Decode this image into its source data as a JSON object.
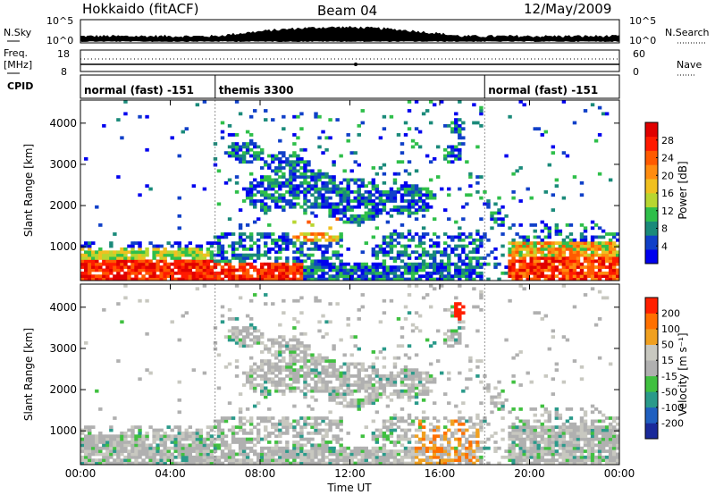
{
  "header": {
    "station": "Hokkaido (fitACF)",
    "beam": "Beam 04",
    "date": "12/May/2009"
  },
  "noise_panel": {
    "left_label": "N.Sky",
    "right_label": "N.Search",
    "ticks_left": [
      "10^5",
      "10^0"
    ],
    "ticks_right": [
      "10^5",
      "10^0"
    ]
  },
  "freq_panel": {
    "left_label_1": "Freq.",
    "left_label_2": "[MHz]",
    "right_label": "Nave",
    "ticks_left": [
      "18",
      "8"
    ],
    "ticks_right": [
      "60",
      "0"
    ]
  },
  "cpid": {
    "label": "CPID",
    "segments": [
      {
        "name": "normal (fast) -151",
        "start_hour": 0,
        "end_hour": 6
      },
      {
        "name": "themis 3300",
        "start_hour": 6,
        "end_hour": 18
      },
      {
        "name": "normal (fast) -151",
        "start_hour": 18,
        "end_hour": 24
      }
    ]
  },
  "chart_data": [
    {
      "type": "heatmap",
      "quantity": "Power",
      "ylabel": "Slant Range [km]",
      "xlabel": "Time UT",
      "x_ticks": [
        "00:00",
        "04:00",
        "08:00",
        "12:00",
        "16:00",
        "20:00",
        "00:00"
      ],
      "x_range_hours": [
        0,
        24
      ],
      "y_ticks": [
        "1000",
        "2000",
        "3000",
        "4000"
      ],
      "y_range_km": [
        180,
        4560
      ],
      "colorbar": {
        "label": "Power [dB]",
        "ticks": [
          "4",
          "8",
          "12",
          "16",
          "20",
          "24",
          "28"
        ],
        "colors": [
          "#0000ee",
          "#1040c8",
          "#1a8a7a",
          "#2fbf4a",
          "#b8d630",
          "#f0c020",
          "#ff8c10",
          "#ff5a00",
          "#ff1a00",
          "#e00000"
        ]
      }
    },
    {
      "type": "heatmap",
      "quantity": "Velocity",
      "ylabel": "Slant Range [km]",
      "xlabel": "Time UT",
      "x_ticks": [
        "00:00",
        "04:00",
        "08:00",
        "12:00",
        "16:00",
        "20:00",
        "00:00"
      ],
      "x_range_hours": [
        0,
        24
      ],
      "y_ticks": [
        "1000",
        "2000",
        "3000",
        "4000"
      ],
      "y_range_km": [
        180,
        4560
      ],
      "colorbar": {
        "label": "Velocity [m s⁻¹]",
        "ticks": [
          "200",
          "100",
          "50",
          "15",
          "-15",
          "-50",
          "-100",
          "-200"
        ],
        "colors": [
          "#1a2a9a",
          "#2060c0",
          "#2a9a8a",
          "#40c040",
          "#b0b0b0",
          "#c8c8c0",
          "#f0a020",
          "#ff7000",
          "#ff2000"
        ]
      }
    }
  ],
  "axis": {
    "time_label": "Time UT"
  }
}
